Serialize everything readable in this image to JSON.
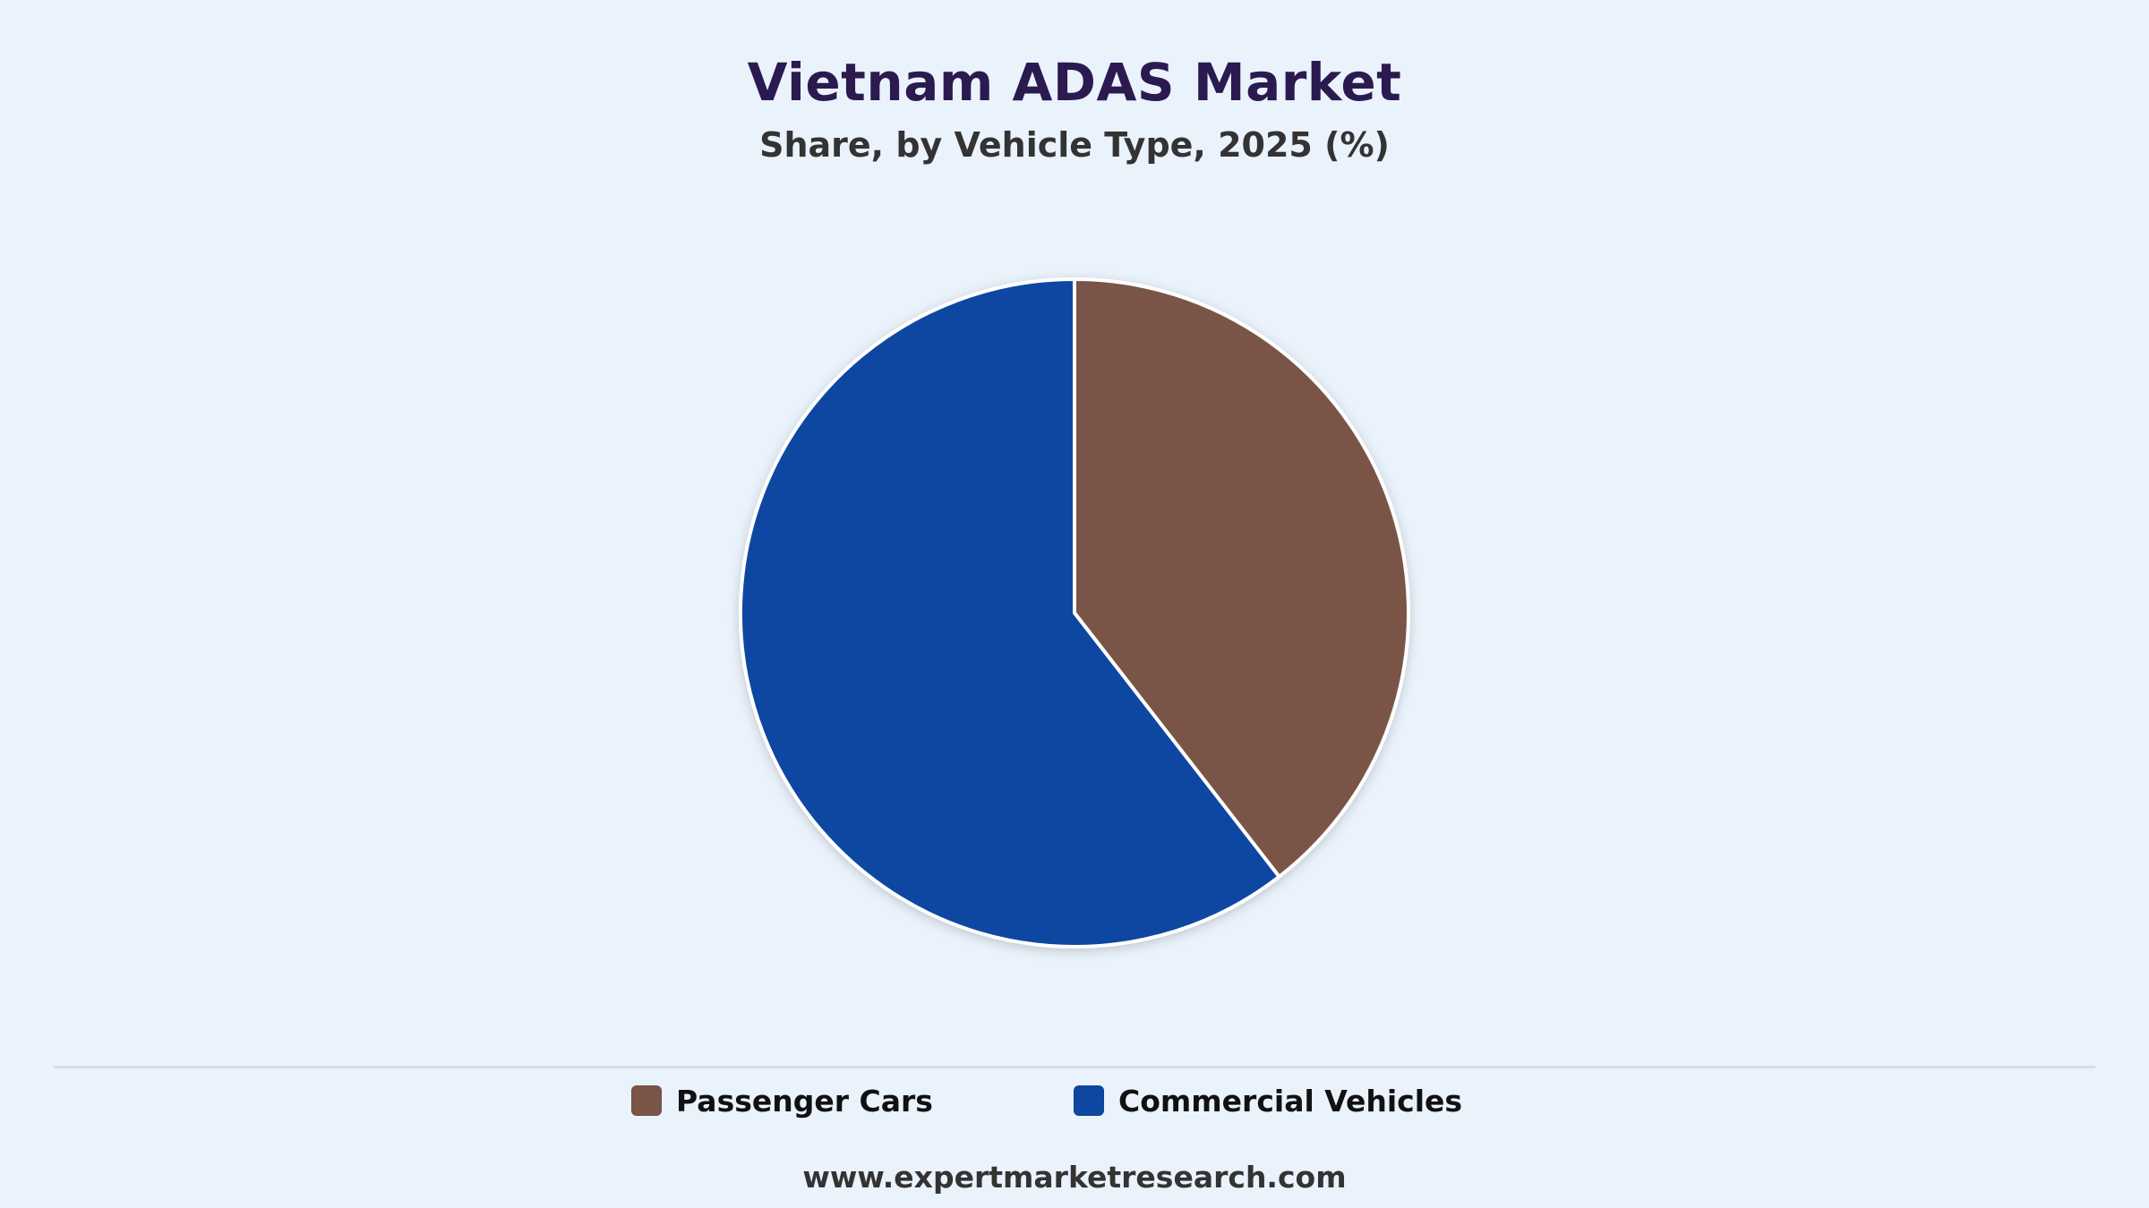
{
  "header": {
    "title": "Vietnam ADAS Market",
    "subtitle": "Share, by Vehicle Type, 2025 (%)"
  },
  "chart_data": {
    "type": "pie",
    "title": "Vietnam ADAS Market",
    "subtitle": "Share, by Vehicle Type, 2025 (%)",
    "start_angle_deg": 0,
    "direction": "clockwise",
    "legend_position": "bottom",
    "slices": [
      {
        "label": "Passenger Cars",
        "value": 39.5,
        "color": "#7a5547"
      },
      {
        "label": "Commercial Vehicles",
        "value": 60.5,
        "color": "#0d47a1"
      }
    ]
  },
  "legend": {
    "items": [
      {
        "label": "Passenger Cars",
        "color": "#7a5547"
      },
      {
        "label": "Commercial Vehicles",
        "color": "#0d47a1"
      }
    ]
  },
  "footer": {
    "source": "www.expertmarketresearch.com"
  }
}
